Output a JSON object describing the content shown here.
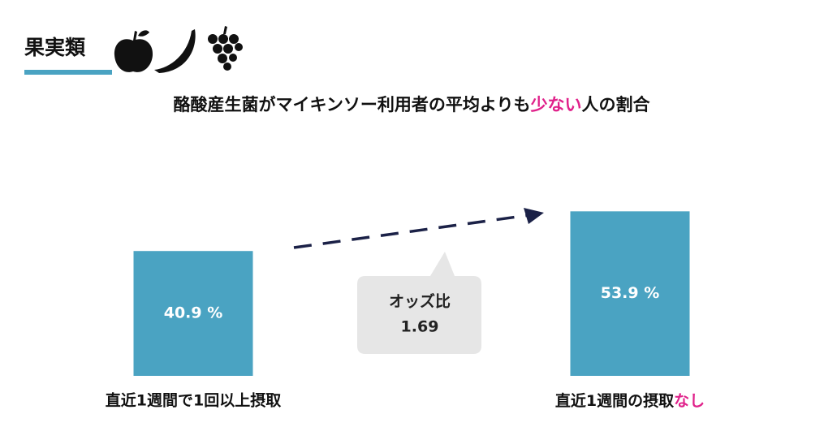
{
  "chart_data": {
    "type": "bar",
    "heading": "果実類",
    "subtitle_parts": [
      "酪酸産生菌がマイキンソー利用者の平均よりも",
      "少ない",
      "人の割合"
    ],
    "highlight_color": "#e0218a",
    "categories": [
      "直近1週間で1回以上摂取",
      "直近1週間の摂取なし"
    ],
    "category_highlight": {
      "index": 1,
      "start": 8
    },
    "values": [
      40.9,
      53.9
    ],
    "value_labels": [
      "40.9 %",
      "53.9 %"
    ],
    "color": "#4aa3c2",
    "ylim": [
      0,
      100
    ],
    "annotation": {
      "label": "オッズ比",
      "value": "1.69"
    }
  }
}
